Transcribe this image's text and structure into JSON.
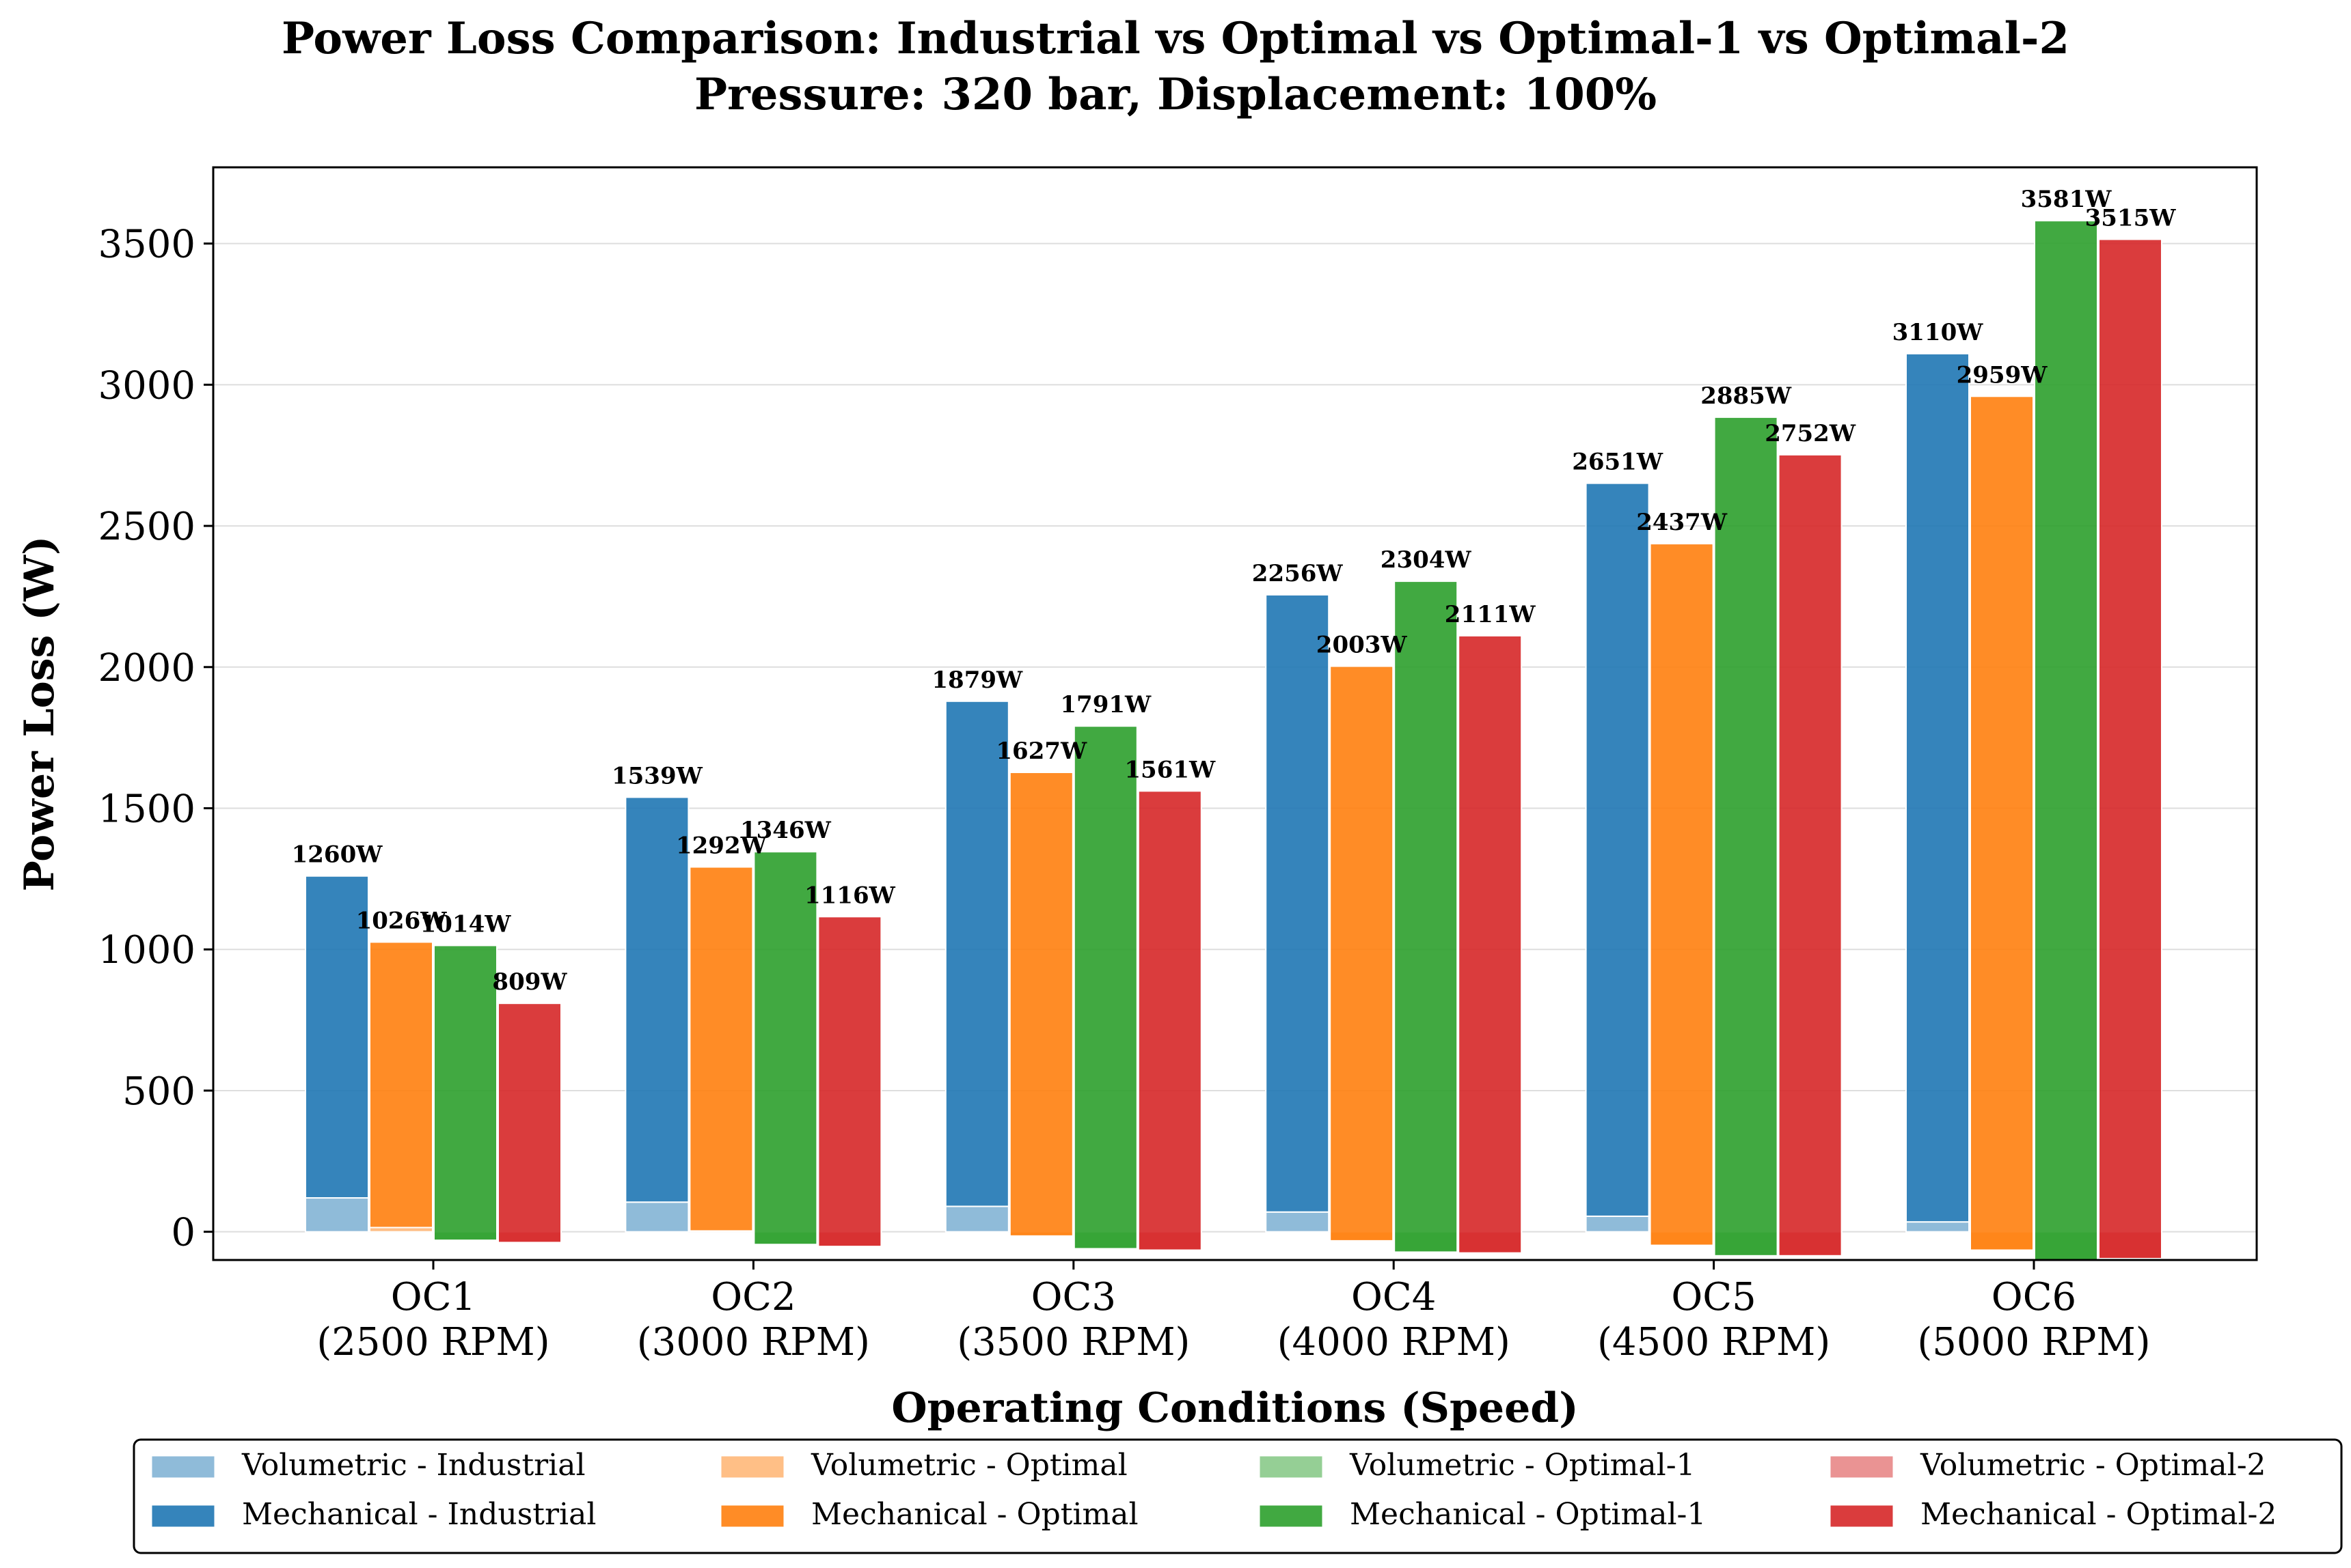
{
  "chart_data": {
    "type": "bar",
    "title": "Power Loss Comparison: Industrial vs Optimal vs Optimal-1 vs Optimal-2",
    "subtitle": "Pressure: 320 bar, Displacement: 100%",
    "xlabel": "Operating Conditions (Speed)",
    "ylabel": "Power Loss (W)",
    "ylim": [
      -100,
      3770
    ],
    "yticks": [
      0,
      500,
      1000,
      1500,
      2000,
      2500,
      3000,
      3500
    ],
    "grid": "horizontal",
    "legend_position": "bottom",
    "categories": [
      [
        "OC1",
        "(2500 RPM)"
      ],
      [
        "OC2",
        "(3000 RPM)"
      ],
      [
        "OC3",
        "(3500 RPM)"
      ],
      [
        "OC4",
        "(4000 RPM)"
      ],
      [
        "OC5",
        "(4500 RPM)"
      ],
      [
        "OC6",
        "(5000 RPM)"
      ]
    ],
    "groups": [
      {
        "name": "Industrial",
        "color": "#1f77b4",
        "volumetric_name": "Volumetric - Industrial",
        "mechanical_name": "Mechanical - Industrial",
        "volumetric": [
          120,
          105,
          90,
          70,
          55,
          35
        ],
        "mechanical": [
          1140,
          1434,
          1789,
          2186,
          2596,
          3075
        ],
        "totals": [
          1260,
          1539,
          1879,
          2256,
          2651,
          3110
        ],
        "total_labels": [
          "1260W",
          "1539W",
          "1879W",
          "2256W",
          "2651W",
          "3110W"
        ]
      },
      {
        "name": "Optimal",
        "color": "#ff7f0e",
        "volumetric_name": "Volumetric - Optimal",
        "mechanical_name": "Mechanical - Optimal",
        "volumetric": [
          15,
          3,
          -15,
          -32,
          -48,
          -65
        ],
        "mechanical": [
          1011,
          1289,
          1642,
          2035,
          2485,
          3024
        ],
        "totals": [
          1026,
          1292,
          1627,
          2003,
          2437,
          2959
        ],
        "total_labels": [
          "1026W",
          "1292W",
          "1627W",
          "2003W",
          "2437W",
          "2959W"
        ]
      },
      {
        "name": "Optimal-1",
        "color": "#2ca02c",
        "volumetric_name": "Volumetric - Optimal-1",
        "mechanical_name": "Mechanical - Optimal-1",
        "volumetric": [
          -30,
          -45,
          -60,
          -72,
          -85,
          -100
        ],
        "mechanical": [
          1044,
          1391,
          1851,
          2376,
          2970,
          3681
        ],
        "totals": [
          1014,
          1346,
          1791,
          2304,
          2885,
          3581
        ],
        "total_labels": [
          "1014W",
          "1346W",
          "1791W",
          "2304W",
          "2885W",
          "3581W"
        ]
      },
      {
        "name": "Optimal-2",
        "color": "#d62728",
        "volumetric_name": "Volumetric - Optimal-2",
        "mechanical_name": "Mechanical - Optimal-2",
        "volumetric": [
          -38,
          -52,
          -65,
          -75,
          -85,
          -95
        ],
        "mechanical": [
          847,
          1168,
          1626,
          2186,
          2837,
          3610
        ],
        "totals": [
          809,
          1116,
          1561,
          2111,
          2752,
          3515
        ],
        "total_labels": [
          "809W",
          "1116W",
          "1561W",
          "2111W",
          "2752W",
          "3515W"
        ]
      }
    ]
  }
}
